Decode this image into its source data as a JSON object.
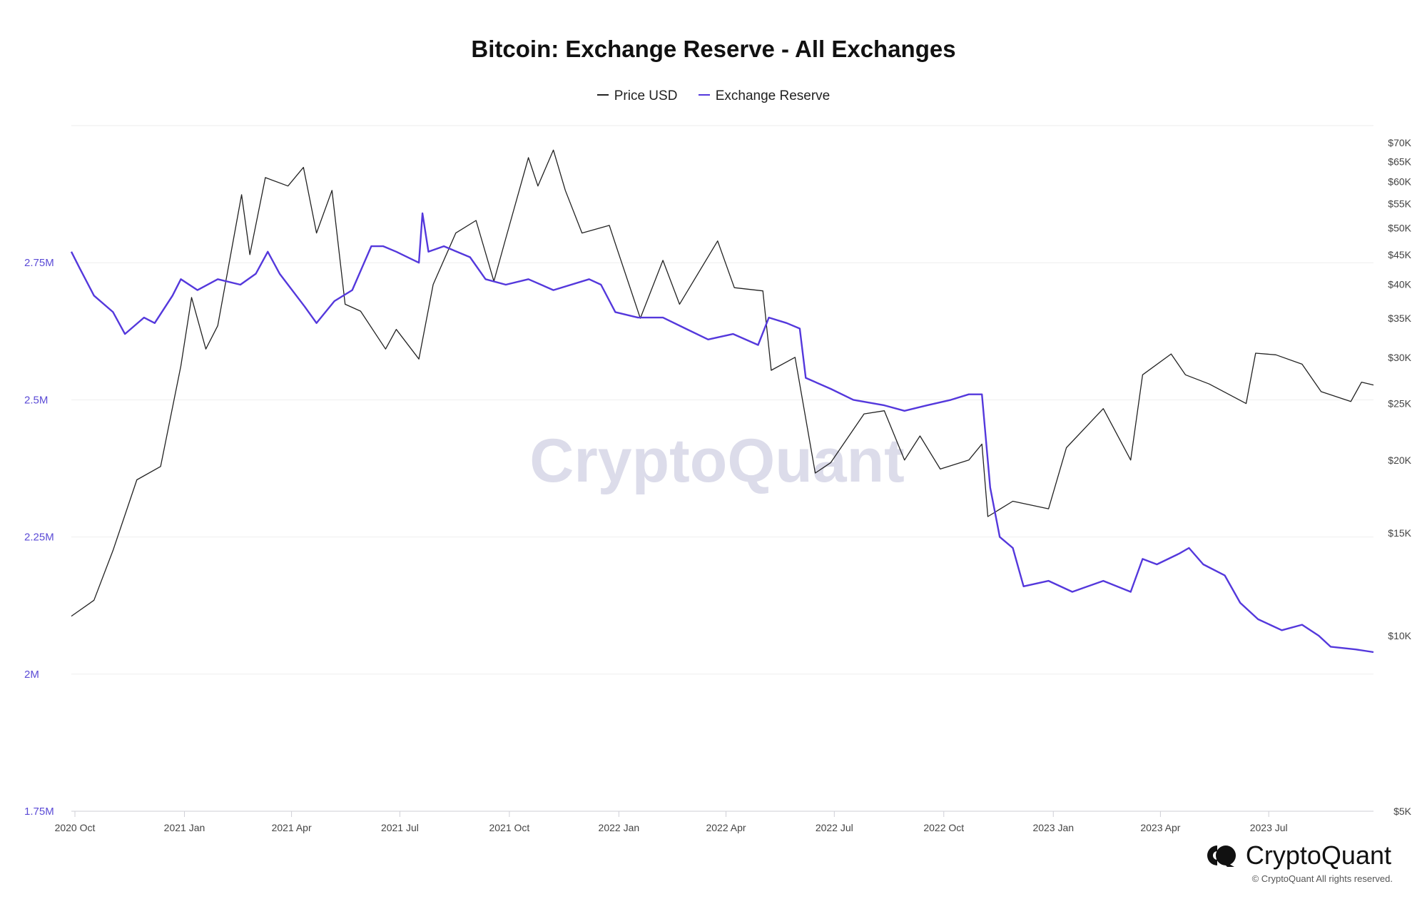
{
  "chart_data": {
    "type": "line",
    "title": "Bitcoin: Exchange Reserve - All Exchanges",
    "legend": {
      "placement": "top-center"
    },
    "grid": true,
    "x_ticks": [
      "2020 Oct",
      "2021 Jan",
      "2021 Apr",
      "2021 Jul",
      "2021 Oct",
      "2022 Jan",
      "2022 Apr",
      "2022 Jul",
      "2022 Oct",
      "2023 Jan",
      "2023 Apr",
      "2023 Jul"
    ],
    "x_range": [
      "2020-10-01",
      "2023-09-30"
    ],
    "left_axis": {
      "ticks": [
        1750000,
        2000000,
        2250000,
        2500000,
        2750000
      ],
      "tick_labels": [
        "1.75M",
        "2M",
        "2.25M",
        "2.5M",
        "2.75M"
      ],
      "ylim": [
        1750000,
        3000000
      ]
    },
    "right_axis": {
      "scale": "log",
      "ticks": [
        5000,
        10000,
        15000,
        20000,
        25000,
        30000,
        35000,
        40000,
        45000,
        50000,
        55000,
        60000,
        65000,
        70000
      ],
      "tick_labels": [
        "$5K",
        "$10K",
        "$15K",
        "$20K",
        "$25K",
        "$30K",
        "$35K",
        "$40K",
        "$45K",
        "$50K",
        "$55K",
        "$60K",
        "$65K",
        "$70K"
      ]
    },
    "series": [
      {
        "name": "Price USD",
        "color": "#222222",
        "axis": "right",
        "points": [
          [
            "2020-10-01",
            10800
          ],
          [
            "2020-10-20",
            11500
          ],
          [
            "2020-11-05",
            14000
          ],
          [
            "2020-11-25",
            18500
          ],
          [
            "2020-12-15",
            19500
          ],
          [
            "2021-01-01",
            29000
          ],
          [
            "2021-01-10",
            38000
          ],
          [
            "2021-01-22",
            31000
          ],
          [
            "2021-02-01",
            34000
          ],
          [
            "2021-02-21",
            57000
          ],
          [
            "2021-02-28",
            45000
          ],
          [
            "2021-03-13",
            61000
          ],
          [
            "2021-04-01",
            59000
          ],
          [
            "2021-04-14",
            63500
          ],
          [
            "2021-04-25",
            49000
          ],
          [
            "2021-05-08",
            58000
          ],
          [
            "2021-05-19",
            37000
          ],
          [
            "2021-06-01",
            36000
          ],
          [
            "2021-06-22",
            31000
          ],
          [
            "2021-07-01",
            33500
          ],
          [
            "2021-07-20",
            29800
          ],
          [
            "2021-08-01",
            40000
          ],
          [
            "2021-08-20",
            49000
          ],
          [
            "2021-09-06",
            51500
          ],
          [
            "2021-09-21",
            40500
          ],
          [
            "2021-10-01",
            48000
          ],
          [
            "2021-10-20",
            66000
          ],
          [
            "2021-10-28",
            59000
          ],
          [
            "2021-11-10",
            68000
          ],
          [
            "2021-11-20",
            58000
          ],
          [
            "2021-12-04",
            49000
          ],
          [
            "2021-12-27",
            50500
          ],
          [
            "2022-01-01",
            47000
          ],
          [
            "2022-01-22",
            35000
          ],
          [
            "2022-02-10",
            44000
          ],
          [
            "2022-02-24",
            37000
          ],
          [
            "2022-03-28",
            47500
          ],
          [
            "2022-04-11",
            39500
          ],
          [
            "2022-05-05",
            39000
          ],
          [
            "2022-05-12",
            28500
          ],
          [
            "2022-06-01",
            30000
          ],
          [
            "2022-06-18",
            19000
          ],
          [
            "2022-07-01",
            19800
          ],
          [
            "2022-07-29",
            24000
          ],
          [
            "2022-08-15",
            24300
          ],
          [
            "2022-09-01",
            20000
          ],
          [
            "2022-09-14",
            22000
          ],
          [
            "2022-10-01",
            19300
          ],
          [
            "2022-10-25",
            20000
          ],
          [
            "2022-11-05",
            21300
          ],
          [
            "2022-11-10",
            16000
          ],
          [
            "2022-12-01",
            17000
          ],
          [
            "2022-12-31",
            16500
          ],
          [
            "2023-01-15",
            21000
          ],
          [
            "2023-02-15",
            24500
          ],
          [
            "2023-03-10",
            20000
          ],
          [
            "2023-03-20",
            28000
          ],
          [
            "2023-04-13",
            30400
          ],
          [
            "2023-04-25",
            28000
          ],
          [
            "2023-05-15",
            27000
          ],
          [
            "2023-06-15",
            25000
          ],
          [
            "2023-06-23",
            30500
          ],
          [
            "2023-07-10",
            30300
          ],
          [
            "2023-08-01",
            29200
          ],
          [
            "2023-08-17",
            26200
          ],
          [
            "2023-09-11",
            25200
          ],
          [
            "2023-09-20",
            27200
          ],
          [
            "2023-09-30",
            26900
          ]
        ]
      },
      {
        "name": "Exchange Reserve",
        "color": "#5438dc",
        "axis": "left",
        "points": [
          [
            "2020-10-01",
            2770000
          ],
          [
            "2020-10-08",
            2740000
          ],
          [
            "2020-10-20",
            2690000
          ],
          [
            "2020-11-05",
            2660000
          ],
          [
            "2020-11-15",
            2620000
          ],
          [
            "2020-12-01",
            2650000
          ],
          [
            "2020-12-10",
            2640000
          ],
          [
            "2020-12-25",
            2690000
          ],
          [
            "2021-01-01",
            2720000
          ],
          [
            "2021-01-15",
            2700000
          ],
          [
            "2021-02-01",
            2720000
          ],
          [
            "2021-02-20",
            2710000
          ],
          [
            "2021-03-05",
            2730000
          ],
          [
            "2021-03-15",
            2770000
          ],
          [
            "2021-03-25",
            2730000
          ],
          [
            "2021-04-15",
            2670000
          ],
          [
            "2021-04-25",
            2640000
          ],
          [
            "2021-05-10",
            2680000
          ],
          [
            "2021-05-25",
            2700000
          ],
          [
            "2021-06-10",
            2780000
          ],
          [
            "2021-06-20",
            2780000
          ],
          [
            "2021-07-01",
            2770000
          ],
          [
            "2021-07-20",
            2750000
          ],
          [
            "2021-07-23",
            2840000
          ],
          [
            "2021-07-28",
            2770000
          ],
          [
            "2021-08-10",
            2780000
          ],
          [
            "2021-09-01",
            2760000
          ],
          [
            "2021-09-14",
            2720000
          ],
          [
            "2021-10-01",
            2710000
          ],
          [
            "2021-10-20",
            2720000
          ],
          [
            "2021-11-10",
            2700000
          ],
          [
            "2021-12-10",
            2720000
          ],
          [
            "2021-12-20",
            2710000
          ],
          [
            "2022-01-01",
            2660000
          ],
          [
            "2022-01-20",
            2650000
          ],
          [
            "2022-02-10",
            2650000
          ],
          [
            "2022-03-01",
            2630000
          ],
          [
            "2022-03-20",
            2610000
          ],
          [
            "2022-04-10",
            2620000
          ],
          [
            "2022-05-01",
            2600000
          ],
          [
            "2022-05-10",
            2650000
          ],
          [
            "2022-05-25",
            2640000
          ],
          [
            "2022-06-05",
            2630000
          ],
          [
            "2022-06-10",
            2540000
          ],
          [
            "2022-07-01",
            2520000
          ],
          [
            "2022-07-20",
            2500000
          ],
          [
            "2022-08-15",
            2490000
          ],
          [
            "2022-09-01",
            2480000
          ],
          [
            "2022-09-20",
            2490000
          ],
          [
            "2022-10-10",
            2500000
          ],
          [
            "2022-10-25",
            2510000
          ],
          [
            "2022-11-05",
            2510000
          ],
          [
            "2022-11-12",
            2340000
          ],
          [
            "2022-11-20",
            2250000
          ],
          [
            "2022-12-01",
            2230000
          ],
          [
            "2022-12-10",
            2160000
          ],
          [
            "2022-12-31",
            2170000
          ],
          [
            "2023-01-20",
            2150000
          ],
          [
            "2023-02-15",
            2170000
          ],
          [
            "2023-03-10",
            2150000
          ],
          [
            "2023-03-20",
            2210000
          ],
          [
            "2023-04-01",
            2200000
          ],
          [
            "2023-04-20",
            2220000
          ],
          [
            "2023-04-28",
            2230000
          ],
          [
            "2023-05-10",
            2200000
          ],
          [
            "2023-05-28",
            2180000
          ],
          [
            "2023-06-10",
            2130000
          ],
          [
            "2023-06-25",
            2100000
          ],
          [
            "2023-07-15",
            2080000
          ],
          [
            "2023-08-01",
            2090000
          ],
          [
            "2023-08-15",
            2070000
          ],
          [
            "2023-08-25",
            2050000
          ],
          [
            "2023-09-15",
            2045000
          ],
          [
            "2023-09-30",
            2040000
          ]
        ]
      }
    ]
  },
  "watermark": "CryptoQuant",
  "brand": {
    "name": "CryptoQuant",
    "copyright": "© CryptoQuant All rights reserved."
  }
}
